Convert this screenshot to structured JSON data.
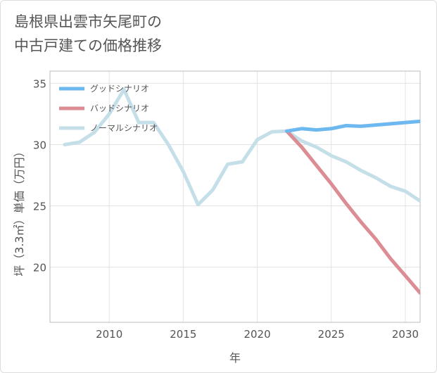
{
  "chart_data": {
    "type": "line",
    "title_lines": [
      "島根県出雲市矢尾町の",
      "中古戸建ての価格推移"
    ],
    "xlabel": "年",
    "ylabel": "坪（3.3㎡）単価（万円）",
    "xlim": [
      2006.0,
      2031.0
    ],
    "ylim": [
      15.5,
      36.0
    ],
    "xticks": [
      2010,
      2015,
      2020,
      2025,
      2030
    ],
    "yticks": [
      20,
      25,
      30,
      35
    ],
    "series": [
      {
        "name": "グッドシナリオ",
        "color": "#6cb8ef",
        "x": [
          2022,
          2023,
          2024,
          2025,
          2026,
          2027,
          2028,
          2029,
          2030,
          2031
        ],
        "y": [
          31.1,
          31.3,
          31.2,
          31.3,
          31.55,
          31.5,
          31.6,
          31.7,
          31.8,
          31.9
        ]
      },
      {
        "name": "バッドシナリオ",
        "color": "#dc8c93",
        "x": [
          2022,
          2023,
          2024,
          2025,
          2026,
          2027,
          2028,
          2029,
          2030,
          2031
        ],
        "y": [
          31.1,
          29.8,
          28.3,
          26.8,
          25.2,
          23.7,
          22.3,
          20.7,
          19.3,
          17.9
        ]
      },
      {
        "name": "ノーマルシナリオ",
        "color": "#c5dfe9",
        "x": [
          2007,
          2008,
          2009,
          2010,
          2011,
          2012,
          2013,
          2014,
          2015,
          2016,
          2017,
          2018,
          2019,
          2020,
          2021,
          2022,
          2023,
          2024,
          2025,
          2026,
          2027,
          2028,
          2029,
          2030,
          2031
        ],
        "y": [
          30.0,
          30.2,
          31.0,
          32.5,
          34.5,
          31.8,
          31.8,
          30.0,
          27.8,
          25.1,
          26.3,
          28.4,
          28.6,
          30.4,
          31.05,
          31.1,
          30.3,
          29.8,
          29.1,
          28.6,
          27.9,
          27.3,
          26.6,
          26.2,
          25.4
        ]
      }
    ]
  }
}
